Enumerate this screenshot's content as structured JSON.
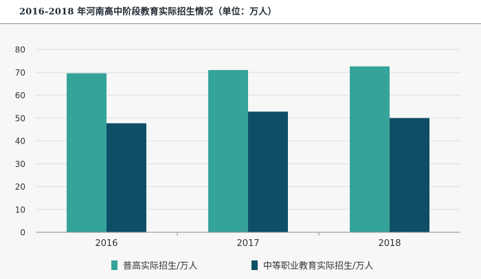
{
  "title": "2016-2018 年河南高中阶段教育实际招生情况（单位：万人）",
  "colors": {
    "series1": "#36a39a",
    "series2": "#0f4f66"
  },
  "chart_data": {
    "type": "bar",
    "title": "2016-2018 年河南高中阶段教育实际招生情况（单位：万人）",
    "categories": [
      "2016",
      "2017",
      "2018"
    ],
    "series": [
      {
        "name": "普高实际招生/万人",
        "values": [
          69.6,
          71.0,
          72.6
        ]
      },
      {
        "name": "中等职业教育实际招生/万人",
        "values": [
          47.7,
          52.8,
          50.0
        ]
      }
    ],
    "ylim": [
      0,
      80
    ],
    "yticks": [
      "0",
      "10",
      "20",
      "30",
      "40",
      "50",
      "60",
      "70",
      "80"
    ],
    "grid": true,
    "legend_position": "bottom"
  }
}
